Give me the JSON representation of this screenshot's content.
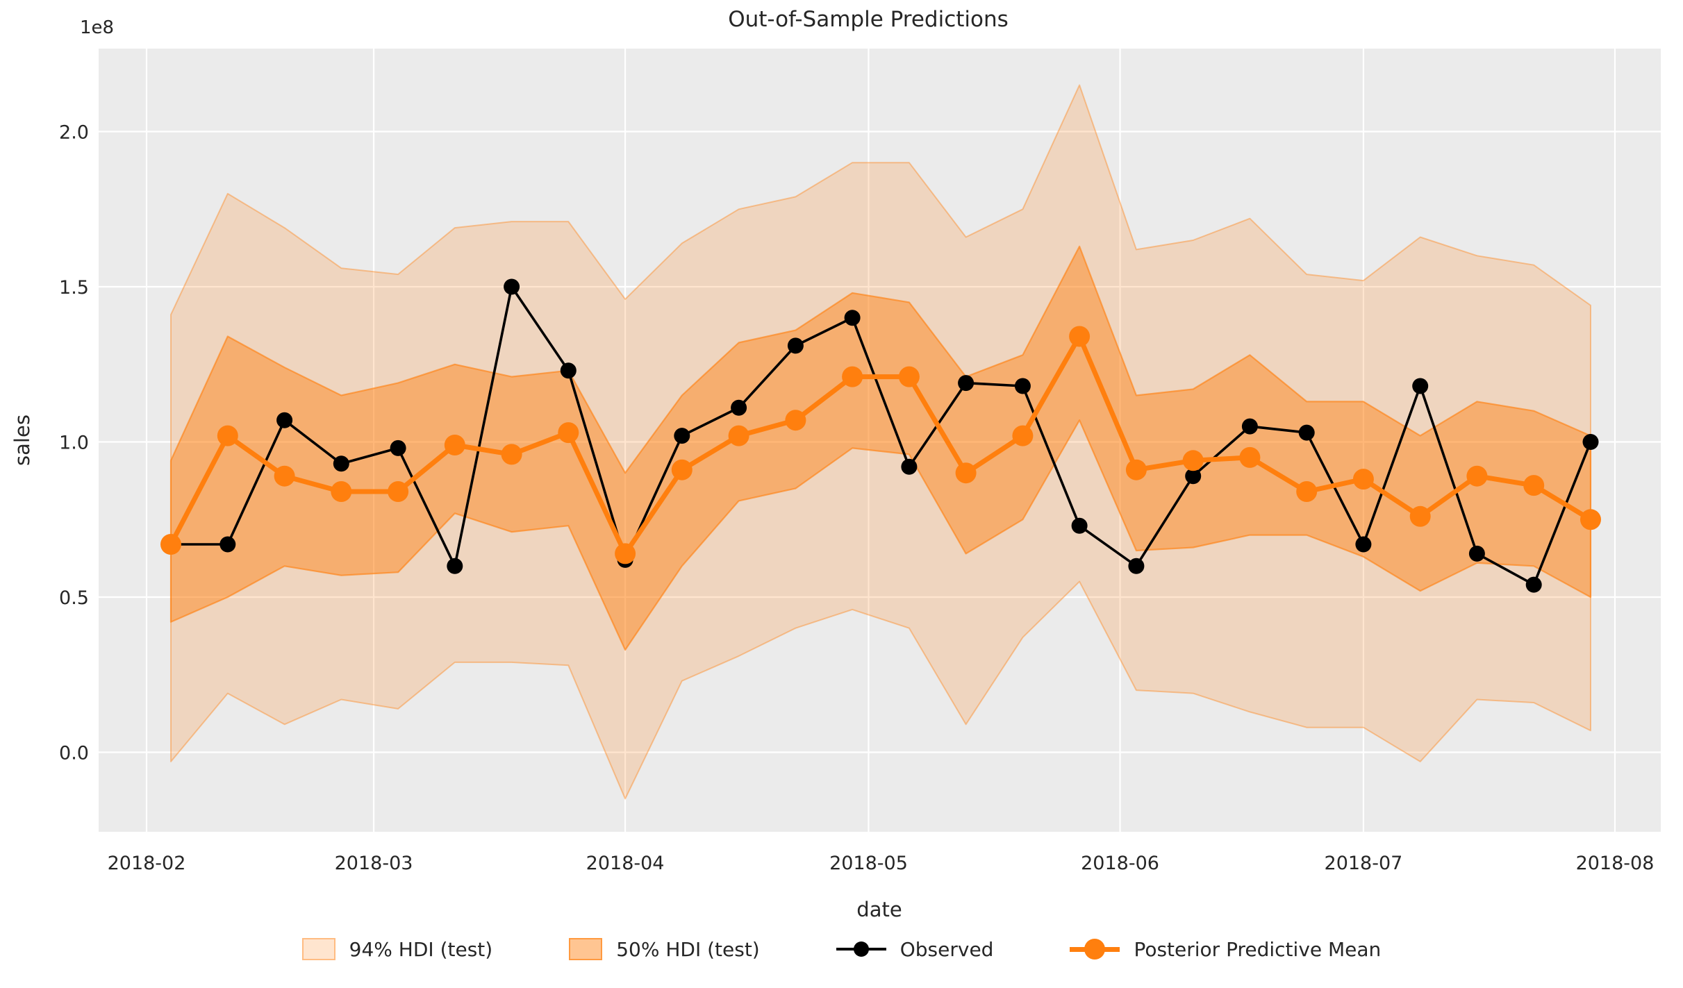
{
  "chart_data": {
    "type": "line",
    "title": "Out-of-Sample Predictions",
    "xlabel": "date",
    "ylabel": "sales",
    "y_offset_text": "1e8",
    "grid": true,
    "plot_bg": "#ebebeb",
    "gridline_color": "#ffffff",
    "text_color": "#262626",
    "colors": {
      "observed": "#000000",
      "mean": "#ff7f0e",
      "band94_fill": "rgba(255,127,14,0.20)",
      "band94_edge": "rgba(255,127,14,0.40)",
      "band50_fill": "rgba(255,127,14,0.45)",
      "band50_edge": "rgba(255,127,14,0.62)"
    },
    "xlim_dates": [
      "2018-01-26",
      "2018-08-07"
    ],
    "ylim": [
      -0.256,
      2.267
    ],
    "x_ticks": [
      {
        "label": "2018-02",
        "date": "2018-02-01"
      },
      {
        "label": "2018-03",
        "date": "2018-03-01"
      },
      {
        "label": "2018-04",
        "date": "2018-04-01"
      },
      {
        "label": "2018-05",
        "date": "2018-05-01"
      },
      {
        "label": "2018-06",
        "date": "2018-06-01"
      },
      {
        "label": "2018-07",
        "date": "2018-07-01"
      },
      {
        "label": "2018-08",
        "date": "2018-08-01"
      }
    ],
    "y_ticks": [
      {
        "label": "0.0",
        "value": 0.0
      },
      {
        "label": "0.5",
        "value": 0.5
      },
      {
        "label": "1.0",
        "value": 1.0
      },
      {
        "label": "1.5",
        "value": 1.5
      },
      {
        "label": "2.0",
        "value": 2.0
      }
    ],
    "x": [
      "2018-02-04",
      "2018-02-11",
      "2018-02-18",
      "2018-02-25",
      "2018-03-04",
      "2018-03-11",
      "2018-03-18",
      "2018-03-25",
      "2018-04-01",
      "2018-04-08",
      "2018-04-15",
      "2018-04-22",
      "2018-04-29",
      "2018-05-06",
      "2018-05-13",
      "2018-05-20",
      "2018-05-27",
      "2018-06-03",
      "2018-06-10",
      "2018-06-17",
      "2018-06-24",
      "2018-07-01",
      "2018-07-08",
      "2018-07-15",
      "2018-07-22",
      "2018-07-29"
    ],
    "series": [
      {
        "name": "Observed",
        "values": [
          0.67,
          0.67,
          1.07,
          0.93,
          0.98,
          0.6,
          1.5,
          1.23,
          0.62,
          1.02,
          1.11,
          1.31,
          1.4,
          0.92,
          1.19,
          1.18,
          0.73,
          0.6,
          0.89,
          1.05,
          1.03,
          0.67,
          1.18,
          0.64,
          0.54,
          1.0
        ]
      },
      {
        "name": "Posterior Predictive Mean",
        "values": [
          0.67,
          1.02,
          0.89,
          0.84,
          0.84,
          0.99,
          0.96,
          1.03,
          0.64,
          0.91,
          1.02,
          1.07,
          1.21,
          1.21,
          0.9,
          1.02,
          1.34,
          0.91,
          0.94,
          0.95,
          0.84,
          0.88,
          0.76,
          0.89,
          0.86,
          0.75
        ]
      }
    ],
    "bands": [
      {
        "name": "94% HDI (test)",
        "upper": [
          1.41,
          1.8,
          1.69,
          1.56,
          1.54,
          1.69,
          1.71,
          1.71,
          1.46,
          1.64,
          1.75,
          1.79,
          1.9,
          1.9,
          1.66,
          1.75,
          2.15,
          1.62,
          1.65,
          1.72,
          1.54,
          1.52,
          1.66,
          1.6,
          1.57,
          1.44
        ],
        "lower": [
          -0.03,
          0.19,
          0.09,
          0.17,
          0.14,
          0.29,
          0.29,
          0.28,
          -0.15,
          0.23,
          0.31,
          0.4,
          0.46,
          0.4,
          0.09,
          0.37,
          0.55,
          0.2,
          0.19,
          0.13,
          0.08,
          0.08,
          -0.03,
          0.17,
          0.16,
          0.07
        ]
      },
      {
        "name": "50% HDI (test)",
        "upper": [
          0.94,
          1.34,
          1.24,
          1.15,
          1.19,
          1.25,
          1.21,
          1.23,
          0.9,
          1.15,
          1.32,
          1.36,
          1.48,
          1.45,
          1.21,
          1.28,
          1.63,
          1.15,
          1.17,
          1.28,
          1.13,
          1.13,
          1.02,
          1.13,
          1.1,
          1.02
        ],
        "lower": [
          0.42,
          0.5,
          0.6,
          0.57,
          0.58,
          0.77,
          0.71,
          0.73,
          0.33,
          0.6,
          0.81,
          0.85,
          0.98,
          0.96,
          0.64,
          0.75,
          1.07,
          0.65,
          0.66,
          0.7,
          0.7,
          0.63,
          0.52,
          0.61,
          0.6,
          0.5
        ]
      }
    ],
    "legend": [
      {
        "label": "94% HDI (test)",
        "kind": "band94"
      },
      {
        "label": "50% HDI (test)",
        "kind": "band50"
      },
      {
        "label": "Observed",
        "kind": "observed"
      },
      {
        "label": "Posterior Predictive Mean",
        "kind": "mean"
      }
    ]
  }
}
